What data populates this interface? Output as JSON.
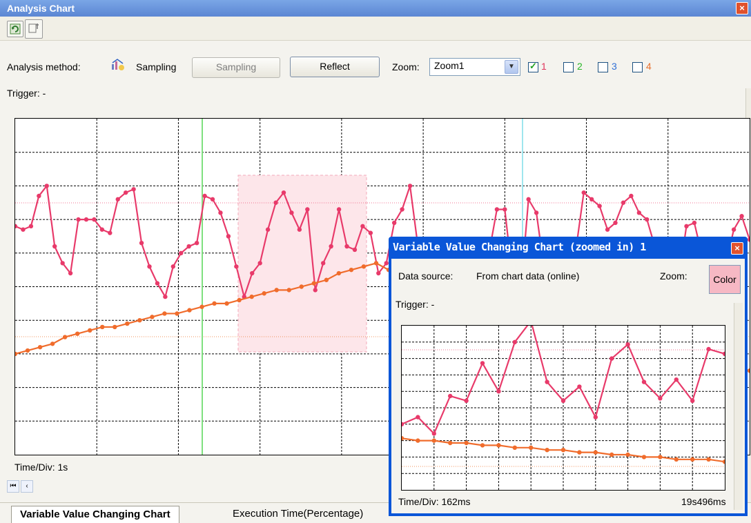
{
  "window": {
    "title": "Analysis Chart",
    "close_icon": "close-icon"
  },
  "toolbar": {
    "buttons": [
      {
        "icon": "refresh-icon"
      },
      {
        "icon": "settings-tool-icon"
      }
    ]
  },
  "options": {
    "analysis_method_label": "Analysis method:",
    "method_value": "Sampling",
    "sampling_button": "Sampling",
    "reflect_button": "Reflect",
    "zoom_label": "Zoom:",
    "zoom_value": "Zoom1",
    "channels": [
      {
        "label": "1",
        "checked": true,
        "color": "#e0335a"
      },
      {
        "label": "2",
        "checked": false,
        "color": "#27b627"
      },
      {
        "label": "3",
        "checked": false,
        "color": "#2f6fd6"
      },
      {
        "label": "4",
        "checked": false,
        "color": "#e8702f"
      }
    ]
  },
  "trigger_label": "Trigger: -",
  "time_div_label": "Time/Div: 1s",
  "colors": {
    "series1": "#e83a6a",
    "series2": "#f06c2c",
    "cursor_green": "#7fe07f",
    "cursor_cyan": "#9fe6ee",
    "selection": "#fde6ea"
  },
  "chart_data": [
    {
      "type": "line",
      "series": [
        {
          "values": [
            68,
            67,
            68,
            77,
            80,
            62,
            57,
            54,
            70,
            70,
            70,
            67,
            66,
            76,
            78,
            79,
            63,
            56,
            51,
            47,
            56,
            60,
            62,
            63,
            77,
            76,
            72,
            65,
            56,
            47,
            54,
            57,
            67,
            75,
            78,
            72,
            67,
            73,
            49,
            57,
            62,
            73,
            62,
            61,
            68,
            66,
            54,
            57,
            69,
            73,
            80,
            62,
            60,
            58,
            61,
            53,
            50,
            55,
            56,
            59,
            60,
            73,
            73,
            52,
            48,
            76,
            72,
            55,
            51,
            55,
            60,
            61,
            78,
            76,
            74,
            67,
            69,
            75,
            77,
            72,
            70,
            62,
            59,
            56,
            52,
            68,
            69,
            59,
            56,
            53,
            57,
            67,
            71,
            64
          ]
        },
        {
          "values": [
            30,
            31,
            32,
            33,
            35,
            36,
            37,
            38,
            38,
            39,
            40,
            41,
            42,
            42,
            43,
            44,
            45,
            45,
            46,
            47,
            48,
            49,
            49,
            50,
            51,
            52,
            54,
            55,
            56,
            57,
            55,
            53,
            52,
            51,
            50,
            49,
            48,
            47,
            46,
            45,
            44,
            43,
            42,
            41,
            40,
            39,
            38,
            37,
            36,
            35,
            34,
            33,
            32,
            31,
            30,
            29,
            28,
            27,
            26,
            25
          ]
        }
      ]
    },
    {
      "type": "line",
      "series": [
        {
          "values": [
            28,
            31,
            24,
            40,
            38,
            54,
            42,
            63,
            72,
            46,
            38,
            44,
            31,
            56,
            62,
            46,
            39,
            47,
            38,
            60,
            58
          ]
        },
        {
          "values": [
            22,
            21,
            21,
            20,
            20,
            19,
            19,
            18,
            18,
            17,
            17,
            16,
            16,
            15,
            15,
            14,
            14,
            13,
            13,
            13,
            12
          ]
        }
      ]
    }
  ],
  "tabs": [
    {
      "label": "Variable Value Changing Chart"
    },
    {
      "label": "Execution Time(Percentage)"
    }
  ],
  "popup": {
    "title": "Variable Value Changing Chart (zoomed in) 1",
    "data_source_label": "Data source:",
    "data_source_value": "From chart data (online)",
    "zoom_label": "Zoom:",
    "color_button": "Color",
    "trigger_label": "Trigger: -",
    "time_div_label": "Time/Div: 162ms",
    "time_right_label": "19s496ms"
  }
}
